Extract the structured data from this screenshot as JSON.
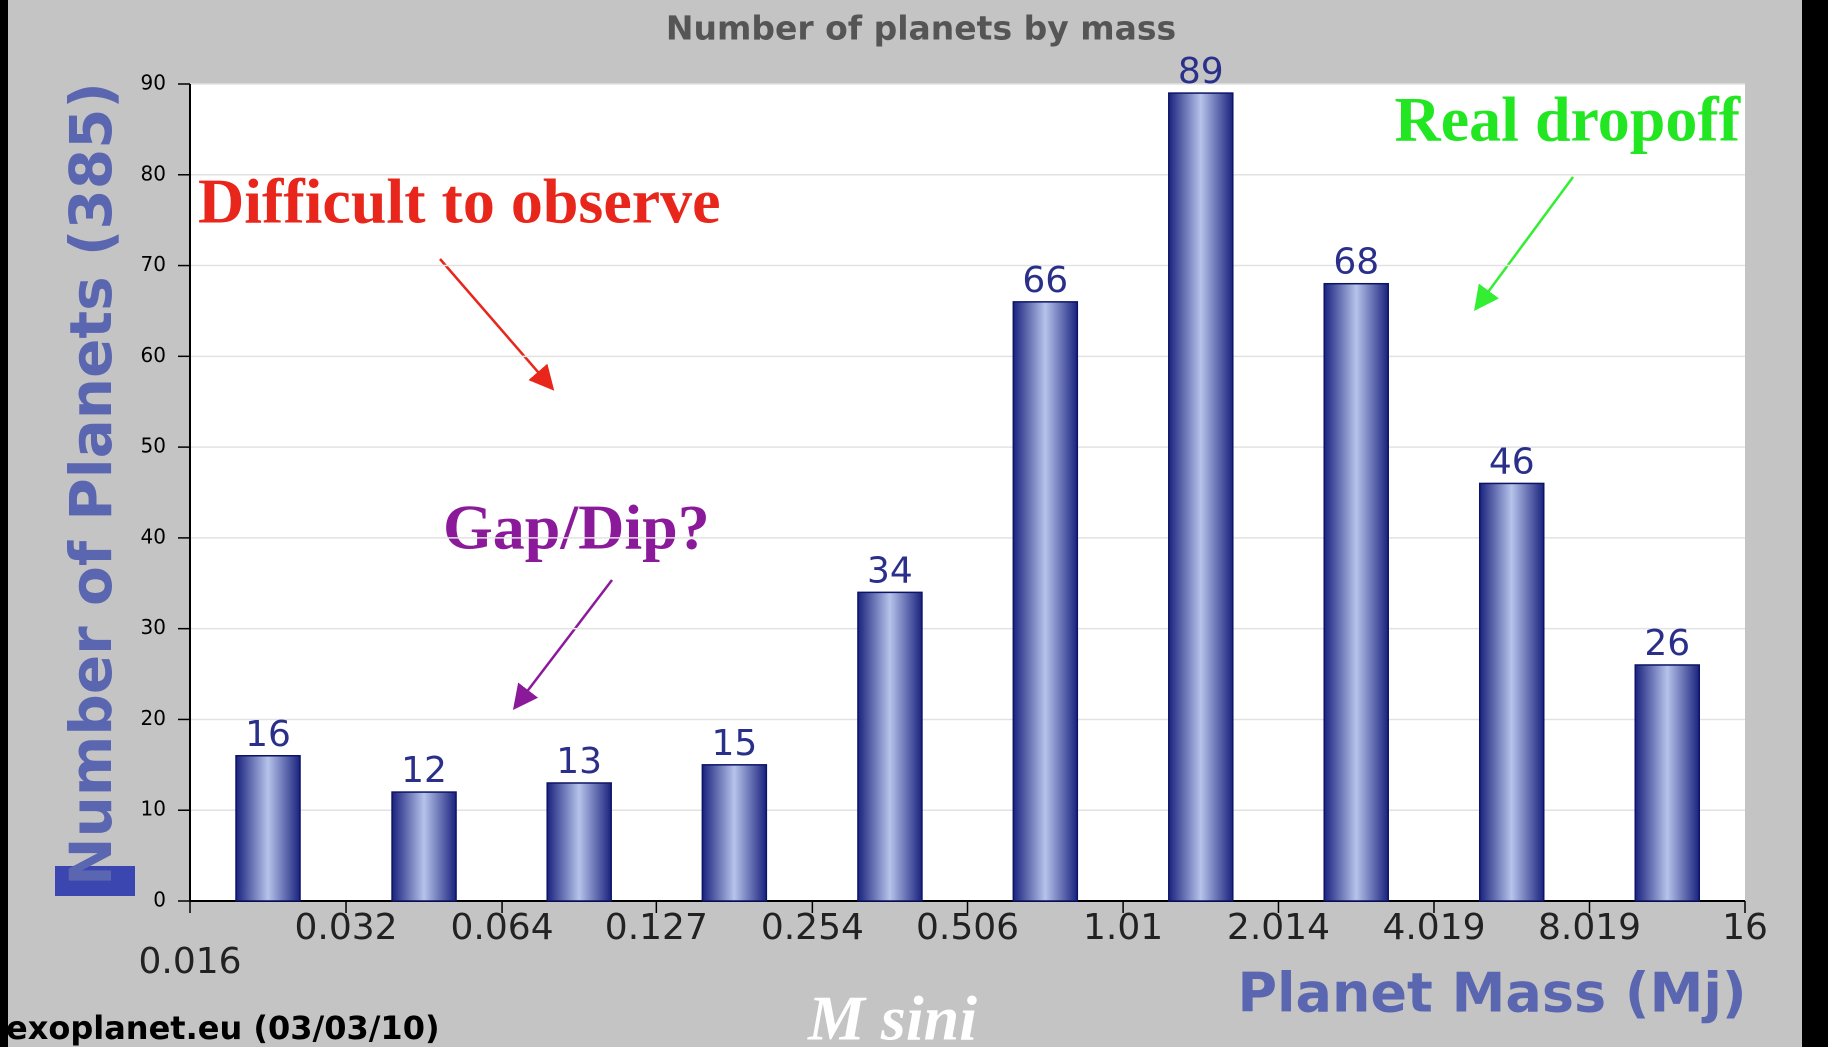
{
  "chart_data": {
    "type": "histogram",
    "title": "Number of planets by mass",
    "ylabel": "Number of Planets (385)",
    "xlabel": "Planet Mass (Mj)",
    "source": "exoplanet.eu (03/03/10)",
    "annotations": [
      "Difficult to observe",
      "Real dropoff",
      "Gap/Dip?",
      "M sini"
    ],
    "bins": [
      0.016,
      0.032,
      0.064,
      0.127,
      0.254,
      0.506,
      1.01,
      2.014,
      4.019,
      8.019,
      16
    ],
    "values": [
      16,
      12,
      13,
      15,
      34,
      66,
      89,
      68,
      46,
      26
    ],
    "xlog": true,
    "xlim": [
      0.016,
      16
    ],
    "xticks": [
      0.016,
      0.032,
      0.064,
      0.127,
      0.254,
      0.506,
      1.01,
      2.014,
      4.019,
      8.019,
      16
    ],
    "ylim": [
      0,
      90
    ],
    "yticks": [
      0,
      10,
      20,
      30,
      40,
      50,
      60,
      70,
      80,
      90
    ],
    "grid": true
  }
}
